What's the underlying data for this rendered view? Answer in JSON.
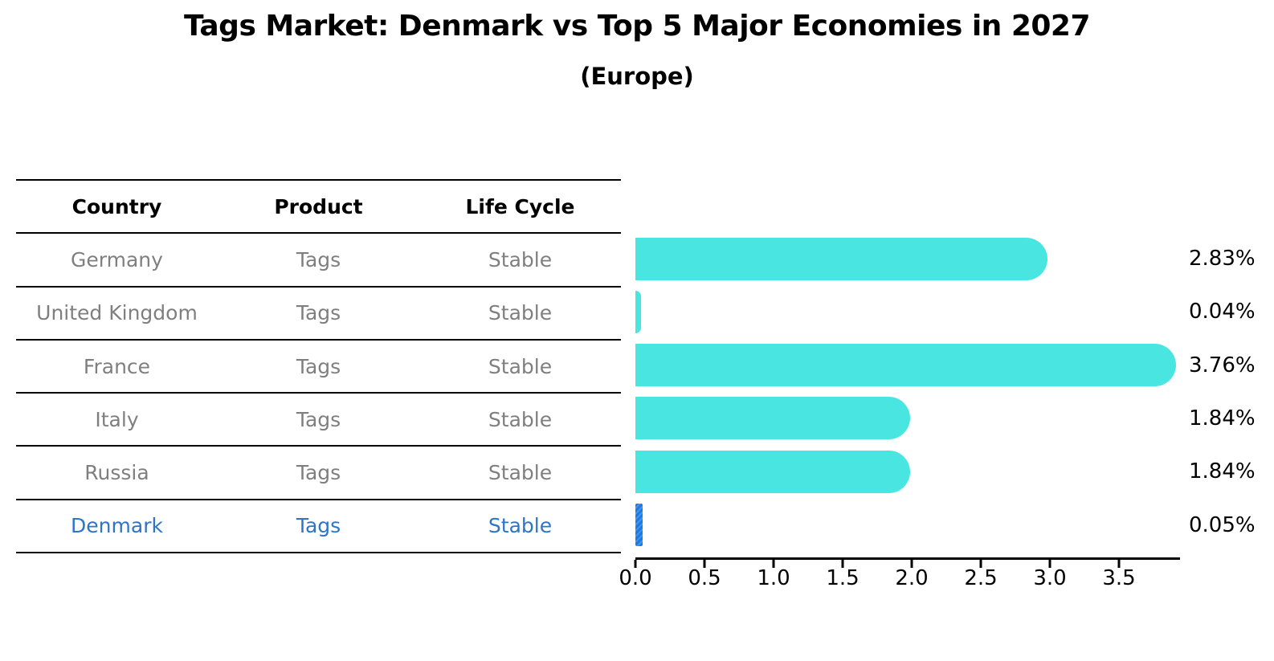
{
  "header": {
    "title": "Tags Market: Denmark vs Top 5 Major Economies in 2027",
    "subtitle": "(Europe)"
  },
  "table": {
    "headers": [
      "Country",
      "Product",
      "Life Cycle"
    ],
    "rows": [
      {
        "country": "Germany",
        "product": "Tags",
        "life_cycle": "Stable",
        "highlight": false
      },
      {
        "country": "United Kingdom",
        "product": "Tags",
        "life_cycle": "Stable",
        "highlight": false
      },
      {
        "country": "France",
        "product": "Tags",
        "life_cycle": "Stable",
        "highlight": false
      },
      {
        "country": "Italy",
        "product": "Tags",
        "life_cycle": "Stable",
        "highlight": false
      },
      {
        "country": "Russia",
        "product": "Tags",
        "life_cycle": "Stable",
        "highlight": false
      },
      {
        "country": "Denmark",
        "product": "Tags",
        "life_cycle": "Stable",
        "highlight": true
      }
    ]
  },
  "chart_data": {
    "type": "bar",
    "orientation": "horizontal",
    "title": "Tags Market: Denmark vs Top 5 Major Economies in 2027",
    "subtitle": "(Europe)",
    "categories": [
      "Germany",
      "United Kingdom",
      "France",
      "Italy",
      "Russia",
      "Denmark"
    ],
    "values": [
      2.83,
      0.04,
      3.76,
      1.84,
      1.84,
      0.05
    ],
    "value_labels": [
      "2.83%",
      "0.04%",
      "3.76%",
      "1.84%",
      "1.84%",
      "0.05%"
    ],
    "highlight_index": 5,
    "x_ticks": [
      0.0,
      0.5,
      1.0,
      1.5,
      2.0,
      2.5,
      3.0,
      3.5
    ],
    "x_tick_labels": [
      "0.0",
      "0.5",
      "1.0",
      "1.5",
      "2.0",
      "2.5",
      "3.0",
      "3.5"
    ],
    "xlim": [
      0,
      3.94
    ],
    "grid": false,
    "legend": "none",
    "bar_color": "#48e5e1",
    "highlight_bar_color": "#1e7ae0",
    "highlight_text_color": "#2e75c8",
    "text_color_muted": "#7f7f7f"
  }
}
